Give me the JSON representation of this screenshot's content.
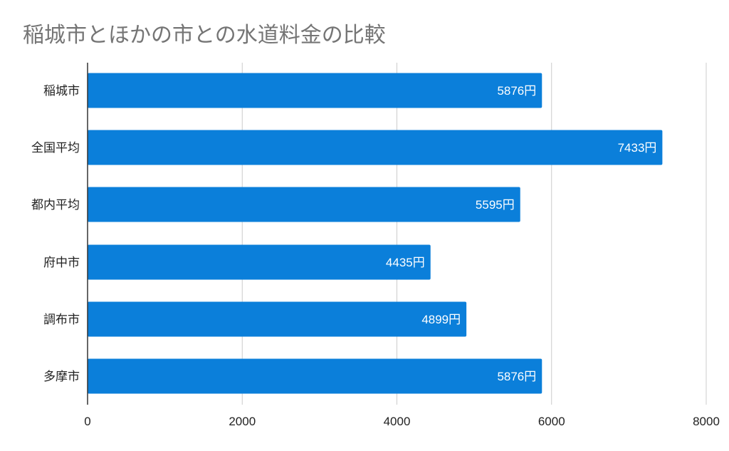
{
  "chart_data": {
    "type": "bar",
    "orientation": "horizontal",
    "title": "稲城市とほかの市との水道料金の比較",
    "categories": [
      "稲城市",
      "全国平均",
      "都内平均",
      "府中市",
      "調布市",
      "多摩市"
    ],
    "values": [
      5876,
      7433,
      5595,
      4435,
      4899,
      5876
    ],
    "data_labels": [
      "5876円",
      "7433円",
      "5595円",
      "4435円",
      "4899円",
      "5876円"
    ],
    "xlim": [
      0,
      8000
    ],
    "xticks": [
      "0",
      "2000",
      "4000",
      "6000",
      "8000"
    ],
    "xlabel": "",
    "ylabel": "",
    "grid": "vertical",
    "legend": "none",
    "colors": {
      "bar": "#0b7fda",
      "title": "#757575",
      "grid": "#cccccc",
      "axis": "#333333"
    }
  }
}
